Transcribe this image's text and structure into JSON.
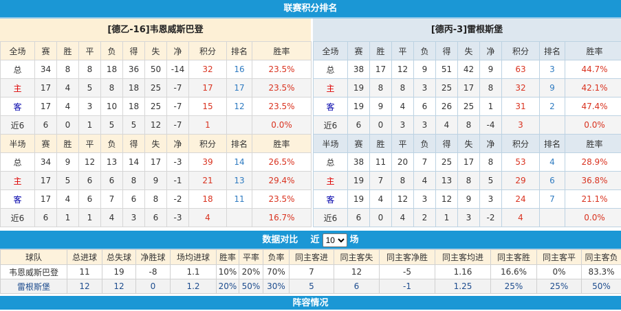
{
  "title": "联赛积分排名",
  "headers_full": [
    "全场",
    "赛",
    "胜",
    "平",
    "负",
    "得",
    "失",
    "净",
    "积分",
    "排名",
    "胜率"
  ],
  "headers_half": [
    "半场",
    "赛",
    "胜",
    "平",
    "负",
    "得",
    "失",
    "净",
    "积分",
    "排名",
    "胜率"
  ],
  "left": {
    "team": "[德乙-16]韦恩威斯巴登",
    "full": [
      [
        "总",
        "34",
        "8",
        "8",
        "18",
        "36",
        "50",
        "-14",
        "32",
        "16",
        "23.5%"
      ],
      [
        "主",
        "17",
        "4",
        "5",
        "8",
        "18",
        "25",
        "-7",
        "17",
        "17",
        "23.5%"
      ],
      [
        "客",
        "17",
        "4",
        "3",
        "10",
        "18",
        "25",
        "-7",
        "15",
        "12",
        "23.5%"
      ],
      [
        "近6",
        "6",
        "0",
        "1",
        "5",
        "5",
        "12",
        "-7",
        "1",
        "",
        "0.0%"
      ]
    ],
    "half": [
      [
        "总",
        "34",
        "9",
        "12",
        "13",
        "14",
        "17",
        "-3",
        "39",
        "14",
        "26.5%"
      ],
      [
        "主",
        "17",
        "5",
        "6",
        "6",
        "8",
        "9",
        "-1",
        "21",
        "13",
        "29.4%"
      ],
      [
        "客",
        "17",
        "4",
        "6",
        "7",
        "6",
        "8",
        "-2",
        "18",
        "11",
        "23.5%"
      ],
      [
        "近6",
        "6",
        "1",
        "1",
        "4",
        "3",
        "6",
        "-3",
        "4",
        "",
        "16.7%"
      ]
    ]
  },
  "right": {
    "team": "[德丙-3]雷根斯堡",
    "full": [
      [
        "总",
        "38",
        "17",
        "12",
        "9",
        "51",
        "42",
        "9",
        "63",
        "3",
        "44.7%"
      ],
      [
        "主",
        "19",
        "8",
        "8",
        "3",
        "25",
        "17",
        "8",
        "32",
        "9",
        "42.1%"
      ],
      [
        "客",
        "19",
        "9",
        "4",
        "6",
        "26",
        "25",
        "1",
        "31",
        "2",
        "47.4%"
      ],
      [
        "近6",
        "6",
        "0",
        "3",
        "3",
        "4",
        "8",
        "-4",
        "3",
        "",
        "0.0%"
      ]
    ],
    "half": [
      [
        "总",
        "38",
        "11",
        "20",
        "7",
        "25",
        "17",
        "8",
        "53",
        "4",
        "28.9%"
      ],
      [
        "主",
        "19",
        "7",
        "8",
        "4",
        "13",
        "8",
        "5",
        "29",
        "6",
        "36.8%"
      ],
      [
        "客",
        "19",
        "4",
        "12",
        "3",
        "12",
        "9",
        "3",
        "24",
        "7",
        "21.1%"
      ],
      [
        "近6",
        "6",
        "0",
        "4",
        "2",
        "1",
        "3",
        "-2",
        "4",
        "",
        "0.0%"
      ]
    ]
  },
  "compare": {
    "title": "数据对比",
    "prefix": "近",
    "selected": "10",
    "suffix": "场",
    "headers": [
      "球队",
      "总进球",
      "总失球",
      "净胜球",
      "场均进球",
      "胜率",
      "平率",
      "负率",
      "同主客进",
      "同主客失",
      "同主客净胜",
      "同主客均进",
      "同主客胜",
      "同主客平",
      "同主客负"
    ],
    "rows": [
      [
        "韦恩威斯巴登",
        "11",
        "19",
        "-8",
        "1.1",
        "10%",
        "20%",
        "70%",
        "7",
        "12",
        "-5",
        "1.16",
        "16.6%",
        "0%",
        "83.3%"
      ],
      [
        "雷根斯堡",
        "12",
        "12",
        "0",
        "1.2",
        "20%",
        "50%",
        "30%",
        "5",
        "6",
        "-1",
        "1.25",
        "25%",
        "25%",
        "50%"
      ]
    ]
  },
  "bottom_title": "阵容情况"
}
